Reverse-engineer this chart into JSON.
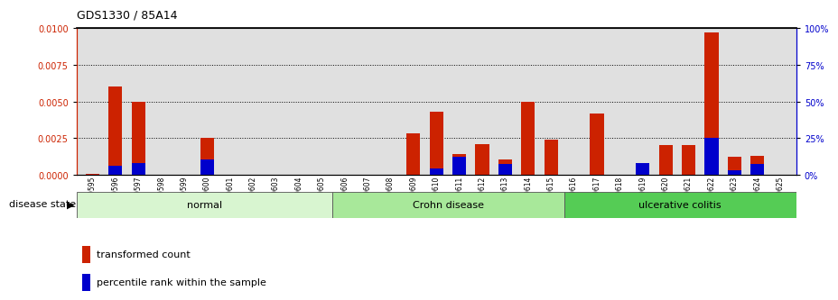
{
  "title": "GDS1330 / 85A14",
  "samples": [
    "GSM29595",
    "GSM29596",
    "GSM29597",
    "GSM29598",
    "GSM29599",
    "GSM29600",
    "GSM29601",
    "GSM29602",
    "GSM29603",
    "GSM29604",
    "GSM29605",
    "GSM29606",
    "GSM29607",
    "GSM29608",
    "GSM29609",
    "GSM29610",
    "GSM29611",
    "GSM29612",
    "GSM29613",
    "GSM29614",
    "GSM29615",
    "GSM29616",
    "GSM29617",
    "GSM29618",
    "GSM29619",
    "GSM29620",
    "GSM29621",
    "GSM29622",
    "GSM29623",
    "GSM29624",
    "GSM29625"
  ],
  "red_values": [
    5e-05,
    0.006,
    0.005,
    0.0,
    0.0,
    0.0025,
    0.0,
    0.0,
    0.0,
    0.0,
    0.0,
    0.0,
    0.0,
    0.0,
    0.0028,
    0.0043,
    0.0014,
    0.0021,
    0.001,
    0.005,
    0.0024,
    0.0,
    0.0042,
    0.0,
    0.0,
    0.002,
    0.002,
    0.0097,
    0.0012,
    0.0013,
    0.0
  ],
  "blue_values": [
    0.0,
    0.0006,
    0.0008,
    0.0,
    0.0,
    0.001,
    0.0,
    0.0,
    0.0,
    0.0,
    0.0,
    0.0,
    0.0,
    0.0,
    0.0,
    0.0004,
    0.0012,
    0.0,
    0.0007,
    0.0,
    0.0,
    0.0,
    0.0,
    0.0,
    0.0008,
    0.0,
    0.0,
    0.0025,
    0.0003,
    0.0007,
    0.0
  ],
  "groups": [
    {
      "label": "normal",
      "start": 0,
      "end": 11,
      "color": "#d8f5d0"
    },
    {
      "label": "Crohn disease",
      "start": 11,
      "end": 21,
      "color": "#a8e89a"
    },
    {
      "label": "ulcerative colitis",
      "start": 21,
      "end": 31,
      "color": "#55cc55"
    }
  ],
  "ylim_left": [
    0,
    0.01
  ],
  "ylim_right": [
    0,
    100
  ],
  "yticks_left": [
    0,
    0.0025,
    0.005,
    0.0075,
    0.01
  ],
  "yticks_right": [
    0,
    25,
    50,
    75,
    100
  ],
  "bar_color_red": "#cc2200",
  "bar_color_blue": "#0000cc",
  "plot_bg_color": "#e0e0e0",
  "fig_bg_color": "#ffffff",
  "disease_state_label": "disease state",
  "legend_red": "transformed count",
  "legend_blue": "percentile rank within the sample"
}
